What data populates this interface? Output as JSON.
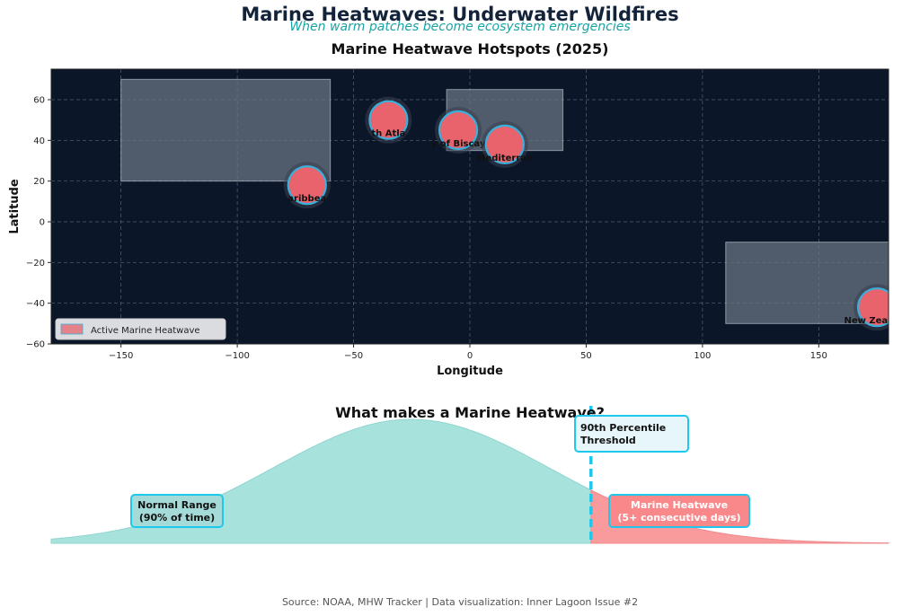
{
  "header": {
    "title": "Marine Heatwaves: Underwater Wildfires",
    "subtitle": "When warm patches become ecosystem emergencies"
  },
  "footer": {
    "source": "Source: NOAA, MHW Tracker | Data visualization: Inner Lagoon Issue #2"
  },
  "colors": {
    "map_bg": "#0b1628",
    "hotspot_fill": "#e8636b",
    "hotspot_edge": "#3ab0dc",
    "region_fill": "#6b7785",
    "normal_fill": "#a8e2dd",
    "heatwave_fill": "#f99a9c",
    "threshold": "#1ec8ec"
  },
  "chart_data": [
    {
      "type": "scatter",
      "title": "Marine Heatwave Hotspots (2025)",
      "xlabel": "Longitude",
      "ylabel": "Latitude",
      "xlim": [
        -180,
        180
      ],
      "ylim": [
        -60,
        75
      ],
      "xticks": [
        -150,
        -100,
        -50,
        0,
        50,
        100,
        150
      ],
      "yticks": [
        -60,
        -40,
        -20,
        0,
        20,
        40,
        60
      ],
      "grid": true,
      "legend": {
        "label": "Active Marine Heatwave",
        "position": "bottom-left"
      },
      "points": [
        {
          "label": "Caribbean",
          "shown": "aribbea",
          "lon": -70,
          "lat": 18
        },
        {
          "label": "North Atlantic",
          "shown": "th Atla",
          "lon": -35,
          "lat": 50
        },
        {
          "label": "Bay of Biscay",
          "shown": "y of Biscay",
          "lon": -5,
          "lat": 45
        },
        {
          "label": "Mediterranean",
          "shown": "Mediterran",
          "lon": 15,
          "lat": 38
        },
        {
          "label": "New Zealand",
          "shown": "New Zealand",
          "lon": 175,
          "lat": -42
        }
      ],
      "regions": [
        {
          "lon": [
            -150,
            -60
          ],
          "lat": [
            20,
            70
          ]
        },
        {
          "lon": [
            -10,
            40
          ],
          "lat": [
            35,
            65
          ]
        },
        {
          "lon": [
            110,
            180
          ],
          "lat": [
            -50,
            -10
          ]
        }
      ]
    },
    {
      "type": "area",
      "title": "What makes a Marine Heatwave?",
      "distribution": {
        "mean": -0.4,
        "sd": 1.0,
        "xlim": [
          -3.0,
          3.05
        ]
      },
      "threshold_x": 0.9,
      "threshold_label": "90th Percentile\nThreshold",
      "normal_label": "Normal Range\n(90% of time)",
      "heatwave_label": "Marine Heatwave\n(5+ consecutive days)"
    }
  ]
}
